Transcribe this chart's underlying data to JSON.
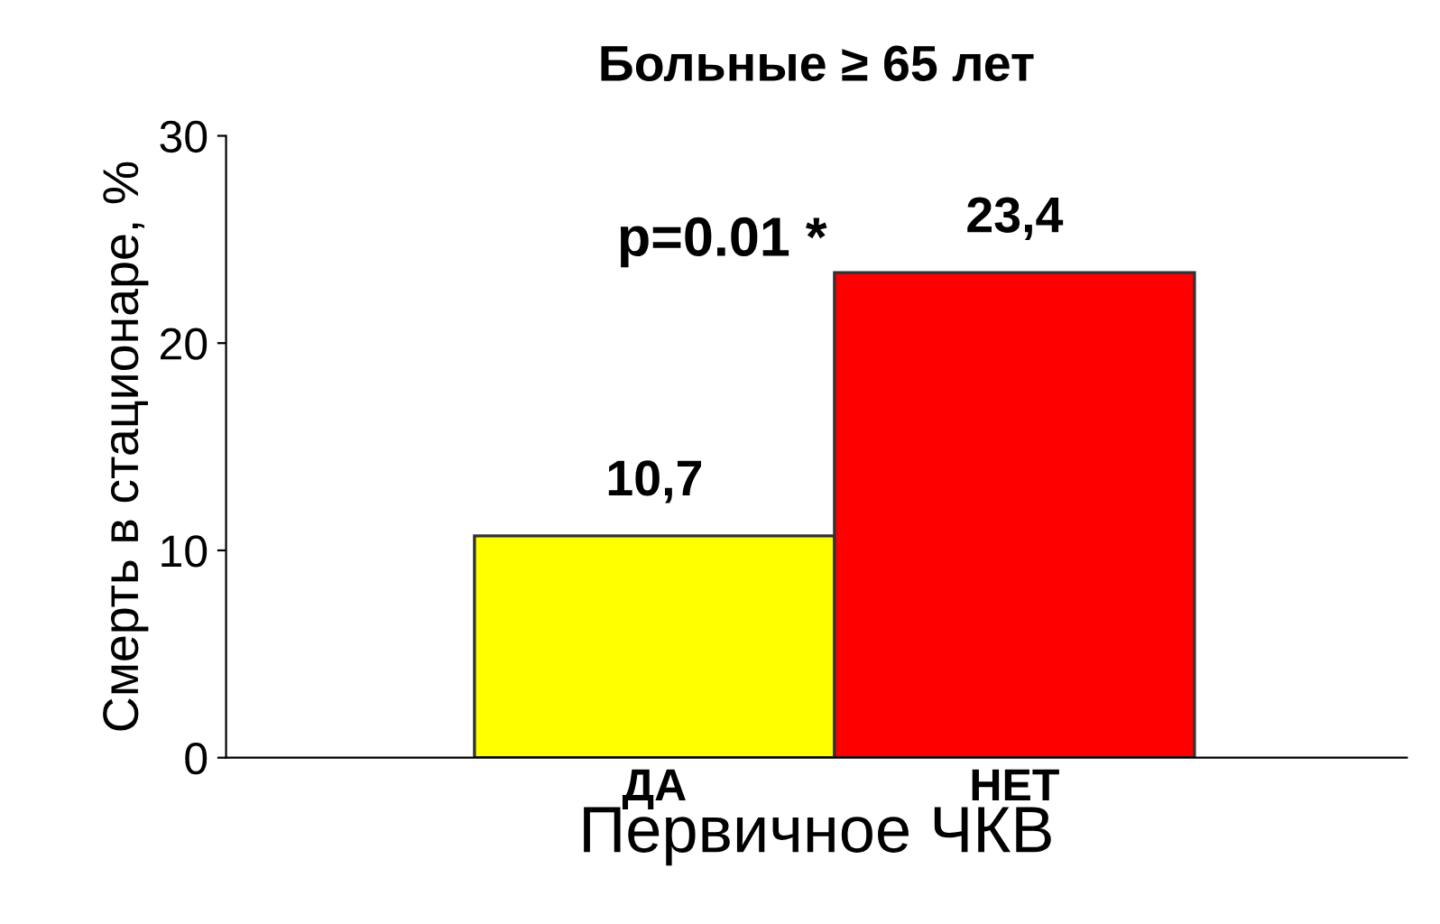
{
  "chart_data": {
    "type": "bar",
    "title": "Больные ≥ 65 лет",
    "xlabel": "Первичное ЧКВ",
    "ylabel": "Смерть в стационаре, %",
    "categories": [
      "ДА",
      "НЕТ"
    ],
    "values": [
      10.7,
      23.4
    ],
    "colors": [
      "#ffff00",
      "#ff0000"
    ],
    "value_labels": [
      "10,7",
      "23,4"
    ],
    "ylim": [
      0,
      30
    ],
    "yticks": [
      0,
      10,
      20,
      30
    ],
    "grid": false,
    "legend": false,
    "annotations": [
      "p=0.01 *"
    ]
  }
}
